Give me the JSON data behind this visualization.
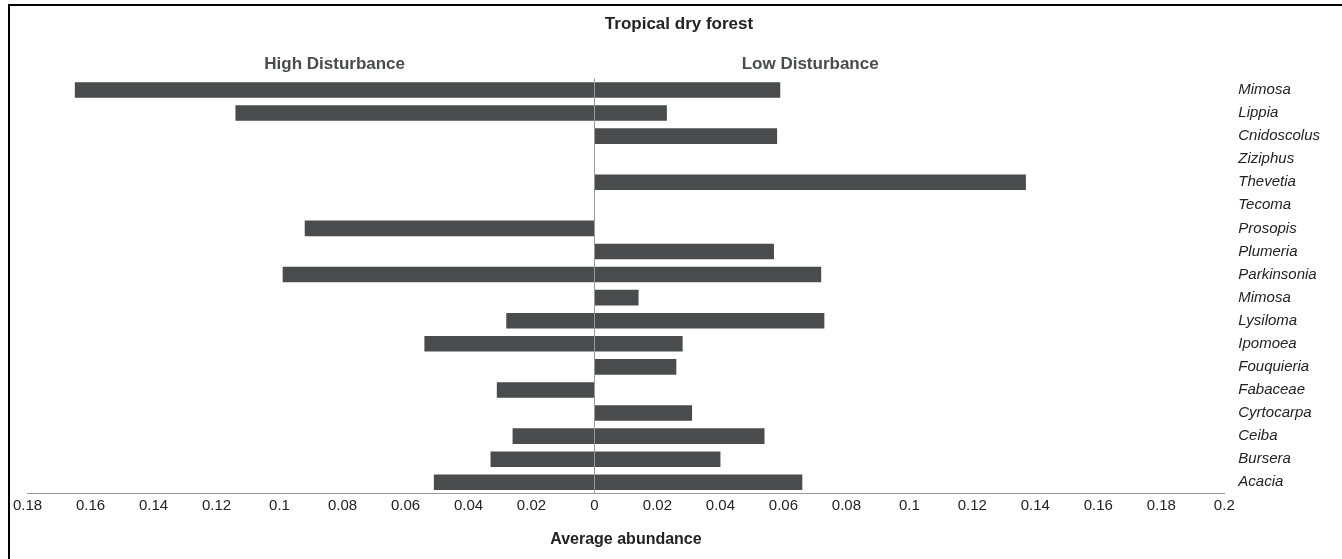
{
  "chart_data": {
    "type": "bar",
    "orientation": "horizontal",
    "stacked": true,
    "title": "Tropical dry forest",
    "xlabel": "Average abundance",
    "categories": [
      "Mimosa",
      "Lippia",
      "Cnidoscolus",
      "Ziziphus",
      "Thevetia",
      "Tecoma",
      "Prosopis",
      "Plumeria",
      "Parkinsonia",
      "Mimosa",
      "Lysiloma",
      "Ipomoea",
      "Fouquieria",
      "Fabaceae",
      "Cyrtocarpa",
      "Ceiba",
      "Bursera",
      "Acacia"
    ],
    "series": [
      {
        "name": "High Disturbance",
        "color": "#4a4b4d",
        "values": [
          -0.165,
          -0.114,
          null,
          null,
          null,
          null,
          -0.092,
          null,
          -0.099,
          null,
          -0.028,
          -0.054,
          null,
          -0.031,
          null,
          -0.026,
          -0.033,
          -0.051
        ]
      },
      {
        "name": "Low Disturbance",
        "color": "#4a4b4d",
        "values": [
          0.059,
          0.023,
          0.058,
          null,
          0.137,
          null,
          null,
          0.057,
          0.072,
          0.014,
          0.073,
          0.028,
          0.026,
          null,
          0.031,
          0.054,
          0.04,
          0.066
        ]
      }
    ],
    "xlim": [
      -0.18,
      0.2
    ],
    "xticks": [
      {
        "value": -0.18,
        "label": "0.18"
      },
      {
        "value": -0.16,
        "label": "0.16"
      },
      {
        "value": -0.14,
        "label": "0.14"
      },
      {
        "value": -0.12,
        "label": "0.12"
      },
      {
        "value": -0.1,
        "label": "0.1"
      },
      {
        "value": -0.08,
        "label": "0.08"
      },
      {
        "value": -0.06,
        "label": "0.06"
      },
      {
        "value": -0.04,
        "label": "0.04"
      },
      {
        "value": -0.02,
        "label": "0.02"
      },
      0,
      0.02,
      0.04,
      0.06,
      0.08,
      0.1,
      0.12,
      0.14,
      0.16,
      0.18,
      0.2
    ],
    "ref_lines": [
      {
        "axis": "x",
        "value": 0,
        "color": "#999999"
      }
    ],
    "grid": false,
    "legend": false
  }
}
